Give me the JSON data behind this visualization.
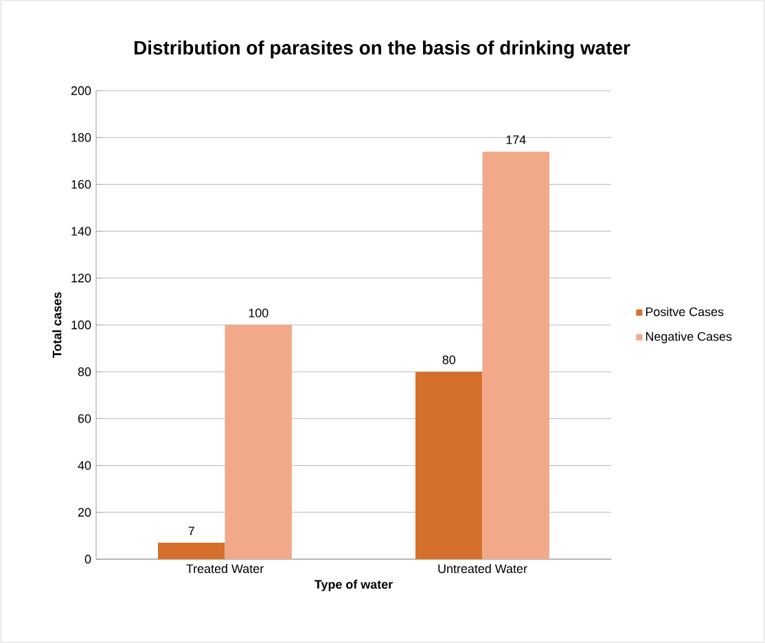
{
  "chart_data": {
    "type": "bar",
    "title": "Distribution of parasites on the basis of drinking water",
    "xlabel": "Type of water",
    "ylabel": "Total cases",
    "categories": [
      "Treated Water",
      "Untreated Water"
    ],
    "series": [
      {
        "name": "Positve Cases",
        "color": "#d4702c",
        "values": [
          7,
          80
        ]
      },
      {
        "name": "Negative Cases",
        "color": "#f2a98a",
        "values": [
          100,
          174
        ]
      }
    ],
    "ylim": [
      0,
      200
    ],
    "yticks": [
      0,
      20,
      40,
      60,
      80,
      100,
      120,
      140,
      160,
      180,
      200
    ],
    "grid": "y",
    "legend": "right",
    "data_labels": true
  }
}
